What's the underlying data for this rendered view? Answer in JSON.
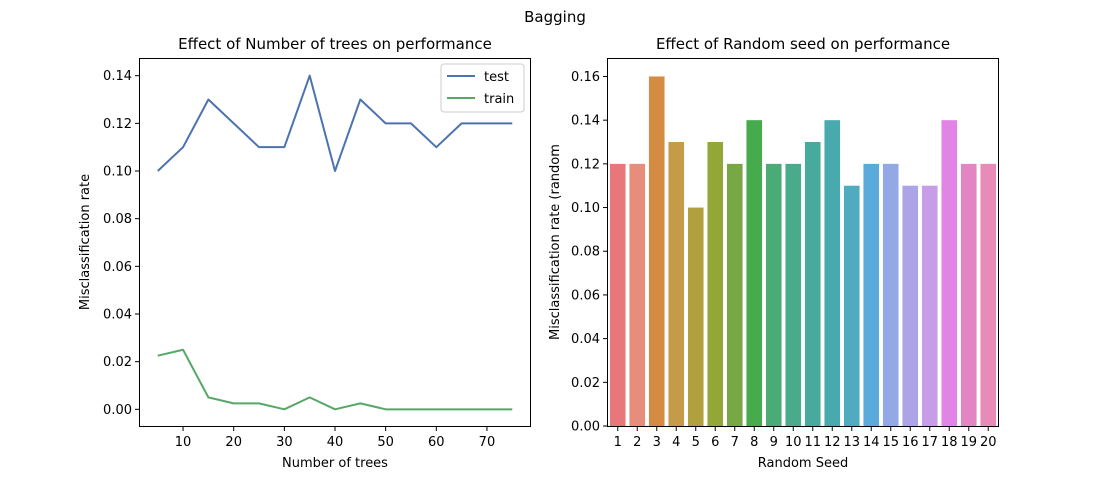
{
  "suptitle": "Bagging",
  "chart_data": [
    {
      "type": "line",
      "title": "Effect of Number of trees on performance",
      "xlabel": "Number of trees",
      "ylabel": "Misclassification rate",
      "xlim": [
        1.5,
        78.5
      ],
      "ylim": [
        -0.007,
        0.147
      ],
      "xticks": [
        10,
        20,
        30,
        40,
        50,
        60,
        70
      ],
      "yticks": [
        0.0,
        0.02,
        0.04,
        0.06,
        0.08,
        0.1,
        0.12,
        0.14
      ],
      "ytick_labels": [
        "0.00",
        "0.02",
        "0.04",
        "0.06",
        "0.08",
        "0.10",
        "0.12",
        "0.14"
      ],
      "legend_position": "top-right",
      "x": [
        5,
        10,
        15,
        20,
        25,
        30,
        35,
        40,
        45,
        50,
        55,
        60,
        65,
        70,
        75
      ],
      "series": [
        {
          "name": "test",
          "color": "#4c72b0",
          "values": [
            0.1,
            0.11,
            0.13,
            0.12,
            0.11,
            0.11,
            0.14,
            0.1,
            0.13,
            0.12,
            0.12,
            0.11,
            0.12,
            0.12,
            0.12
          ]
        },
        {
          "name": "train",
          "color": "#55a868",
          "values": [
            0.0225,
            0.025,
            0.005,
            0.0025,
            0.0025,
            0.0,
            0.005,
            0.0,
            0.0025,
            0.0,
            0.0,
            0.0,
            0.0,
            0.0,
            0.0
          ]
        }
      ]
    },
    {
      "type": "bar",
      "title": "Effect of Random seed on performance",
      "xlabel": "Random Seed",
      "ylabel": "Misclassification rate (random",
      "ylim": [
        0,
        0.168
      ],
      "yticks": [
        0.0,
        0.02,
        0.04,
        0.06,
        0.08,
        0.1,
        0.12,
        0.14,
        0.16
      ],
      "ytick_labels": [
        "0.00",
        "0.02",
        "0.04",
        "0.06",
        "0.08",
        "0.10",
        "0.12",
        "0.14",
        "0.16"
      ],
      "categories": [
        "1",
        "2",
        "3",
        "4",
        "5",
        "6",
        "7",
        "8",
        "9",
        "10",
        "11",
        "12",
        "13",
        "14",
        "15",
        "16",
        "17",
        "18",
        "19",
        "20"
      ],
      "values": [
        0.12,
        0.12,
        0.16,
        0.13,
        0.1,
        0.13,
        0.12,
        0.14,
        0.12,
        0.12,
        0.13,
        0.14,
        0.11,
        0.12,
        0.12,
        0.11,
        0.11,
        0.14,
        0.12,
        0.12
      ],
      "colors": [
        "#e8777b",
        "#e68d7b",
        "#d48b42",
        "#c59b47",
        "#b29f3e",
        "#93a738",
        "#78a843",
        "#46ab4d",
        "#4bab77",
        "#4aab8a",
        "#47aa9c",
        "#49aaad",
        "#4eabc0",
        "#5aaadb",
        "#92a9e6",
        "#aba4e6",
        "#c69de6",
        "#e184e6",
        "#e485c3",
        "#e88bb8"
      ]
    }
  ]
}
